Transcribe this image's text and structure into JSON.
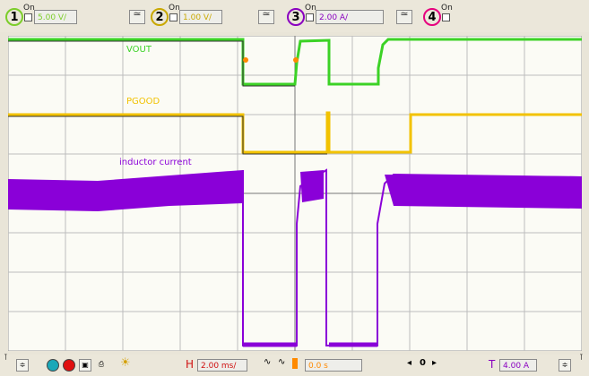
{
  "channels": [
    {
      "num": "1",
      "on_label": "On",
      "value": "5.00 V/",
      "value_color": "#7ccd2a"
    },
    {
      "num": "2",
      "on_label": "On",
      "value": "1.00 V/",
      "value_color": "#c9a800"
    },
    {
      "num": "3",
      "on_label": "On",
      "value": "2.00 A/",
      "value_color": "#8a00c0"
    },
    {
      "num": "4",
      "on_label": "On",
      "value": "",
      "value_color": "#e6007e"
    }
  ],
  "coupling_symbol": "≃",
  "traces": {
    "vout": {
      "label": "VOUT",
      "color": "#3cd226"
    },
    "pgood": {
      "label": "PGOOD",
      "color": "#f2c200"
    },
    "inductor": {
      "label": "inductor current",
      "color": "#8a00d8"
    }
  },
  "bottom": {
    "h_label": "H",
    "timebase": "2.00 ms/",
    "delay": "0.0 s",
    "nav_value": "0",
    "t_label": "T",
    "trigger_level": "4.00 A"
  },
  "colors": {
    "grid_bg": "#fbfbf5",
    "grid_line": "#b9b9b9",
    "marker": "#ff8a00",
    "h_red": "#d01010"
  }
}
